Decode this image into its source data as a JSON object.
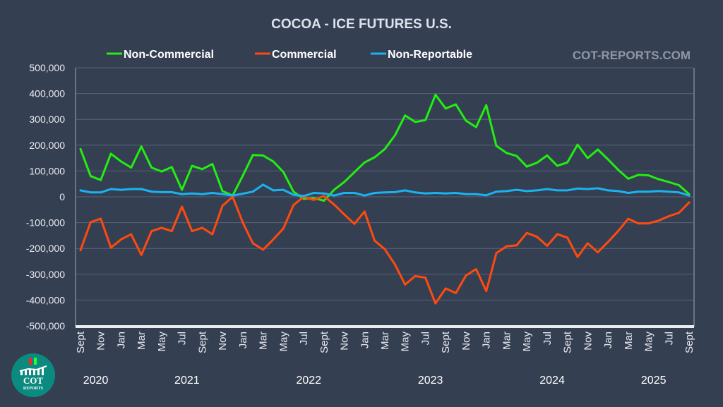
{
  "chart_data": {
    "type": "line",
    "title": "COCOA - ICE FUTURES U.S.",
    "watermark": "COT-REPORTS.COM",
    "logo_text": [
      "COT",
      "REPORTS"
    ],
    "xlabel": "",
    "ylabel": "",
    "ylim": [
      -500000,
      500000
    ],
    "yticks": [
      500000,
      400000,
      300000,
      200000,
      100000,
      0,
      -100000,
      -200000,
      -300000,
      -400000,
      -500000
    ],
    "ytick_labels": [
      "500,000",
      "400,000",
      "300,000",
      "200,000",
      "100,000",
      "0",
      "-100,000",
      "-200,000",
      "-300,000",
      "-400,000",
      "-500,000"
    ],
    "grid": true,
    "legend_position": "top",
    "x_count": 61,
    "x_tick_labels": [
      "Sept",
      "Nov",
      "Jan",
      "Mar",
      "May",
      "Jul",
      "Sept",
      "Nov",
      "Jan",
      "Mar",
      "May",
      "Jul",
      "Sept",
      "Nov",
      "Jan",
      "Mar",
      "May",
      "Jul",
      "Sept",
      "Nov",
      "Jan",
      "Mar",
      "May",
      "Jul",
      "Sept",
      "Nov",
      "Jan",
      "Mar",
      "May",
      "Jul",
      "Sept"
    ],
    "x_tick_every": 2,
    "year_labels": [
      {
        "label": "2020",
        "index": 1.5
      },
      {
        "label": "2021",
        "index": 10.5
      },
      {
        "label": "2022",
        "index": 22.5
      },
      {
        "label": "2023",
        "index": 34.5
      },
      {
        "label": "2024",
        "index": 46.5
      },
      {
        "label": "2025",
        "index": 56.5
      }
    ],
    "series": [
      {
        "name": "Non-Commercial",
        "color": "#22ee11",
        "values": [
          185000,
          80000,
          65000,
          167000,
          137000,
          113000,
          195000,
          113000,
          98000,
          115000,
          27000,
          120000,
          107000,
          127000,
          22000,
          5000,
          82000,
          162000,
          160000,
          137000,
          96000,
          20000,
          -8000,
          -5000,
          -15000,
          27000,
          57000,
          95000,
          133000,
          153000,
          185000,
          238000,
          315000,
          290000,
          297000,
          395000,
          342000,
          358000,
          295000,
          270000,
          355000,
          197000,
          170000,
          158000,
          117000,
          132000,
          160000,
          120000,
          133000,
          202000,
          150000,
          183000,
          145000,
          105000,
          70000,
          85000,
          83000,
          68000,
          57000,
          45000,
          10000
        ]
      },
      {
        "name": "Commercial",
        "color": "#ff4a0f",
        "values": [
          -207000,
          -98000,
          -85000,
          -197000,
          -165000,
          -145000,
          -225000,
          -133000,
          -120000,
          -133000,
          -38000,
          -133000,
          -120000,
          -145000,
          -35000,
          0,
          -100000,
          -180000,
          -205000,
          -165000,
          -123000,
          -32000,
          0,
          -12000,
          3000,
          -30000,
          -68000,
          -105000,
          -57000,
          -170000,
          -203000,
          -262000,
          -340000,
          -307000,
          -313000,
          -413000,
          -355000,
          -373000,
          -305000,
          -280000,
          -365000,
          -218000,
          -192000,
          -188000,
          -140000,
          -155000,
          -190000,
          -145000,
          -158000,
          -233000,
          -180000,
          -215000,
          -175000,
          -133000,
          -85000,
          -103000,
          -103000,
          -92000,
          -75000,
          -62000,
          -22000
        ]
      },
      {
        "name": "Non-Reportable",
        "color": "#19b4f0",
        "values": [
          25000,
          17000,
          17000,
          30000,
          27000,
          30000,
          30000,
          20000,
          18000,
          18000,
          10000,
          13000,
          10000,
          15000,
          10000,
          5000,
          12000,
          20000,
          47000,
          25000,
          27000,
          8000,
          3000,
          15000,
          13000,
          5000,
          15000,
          15000,
          5000,
          15000,
          17000,
          18000,
          25000,
          17000,
          13000,
          15000,
          13000,
          15000,
          10000,
          10000,
          6000,
          20000,
          22000,
          27000,
          22000,
          25000,
          30000,
          25000,
          25000,
          32000,
          30000,
          33000,
          25000,
          22000,
          15000,
          20000,
          20000,
          22000,
          20000,
          17000,
          5000
        ]
      }
    ]
  }
}
